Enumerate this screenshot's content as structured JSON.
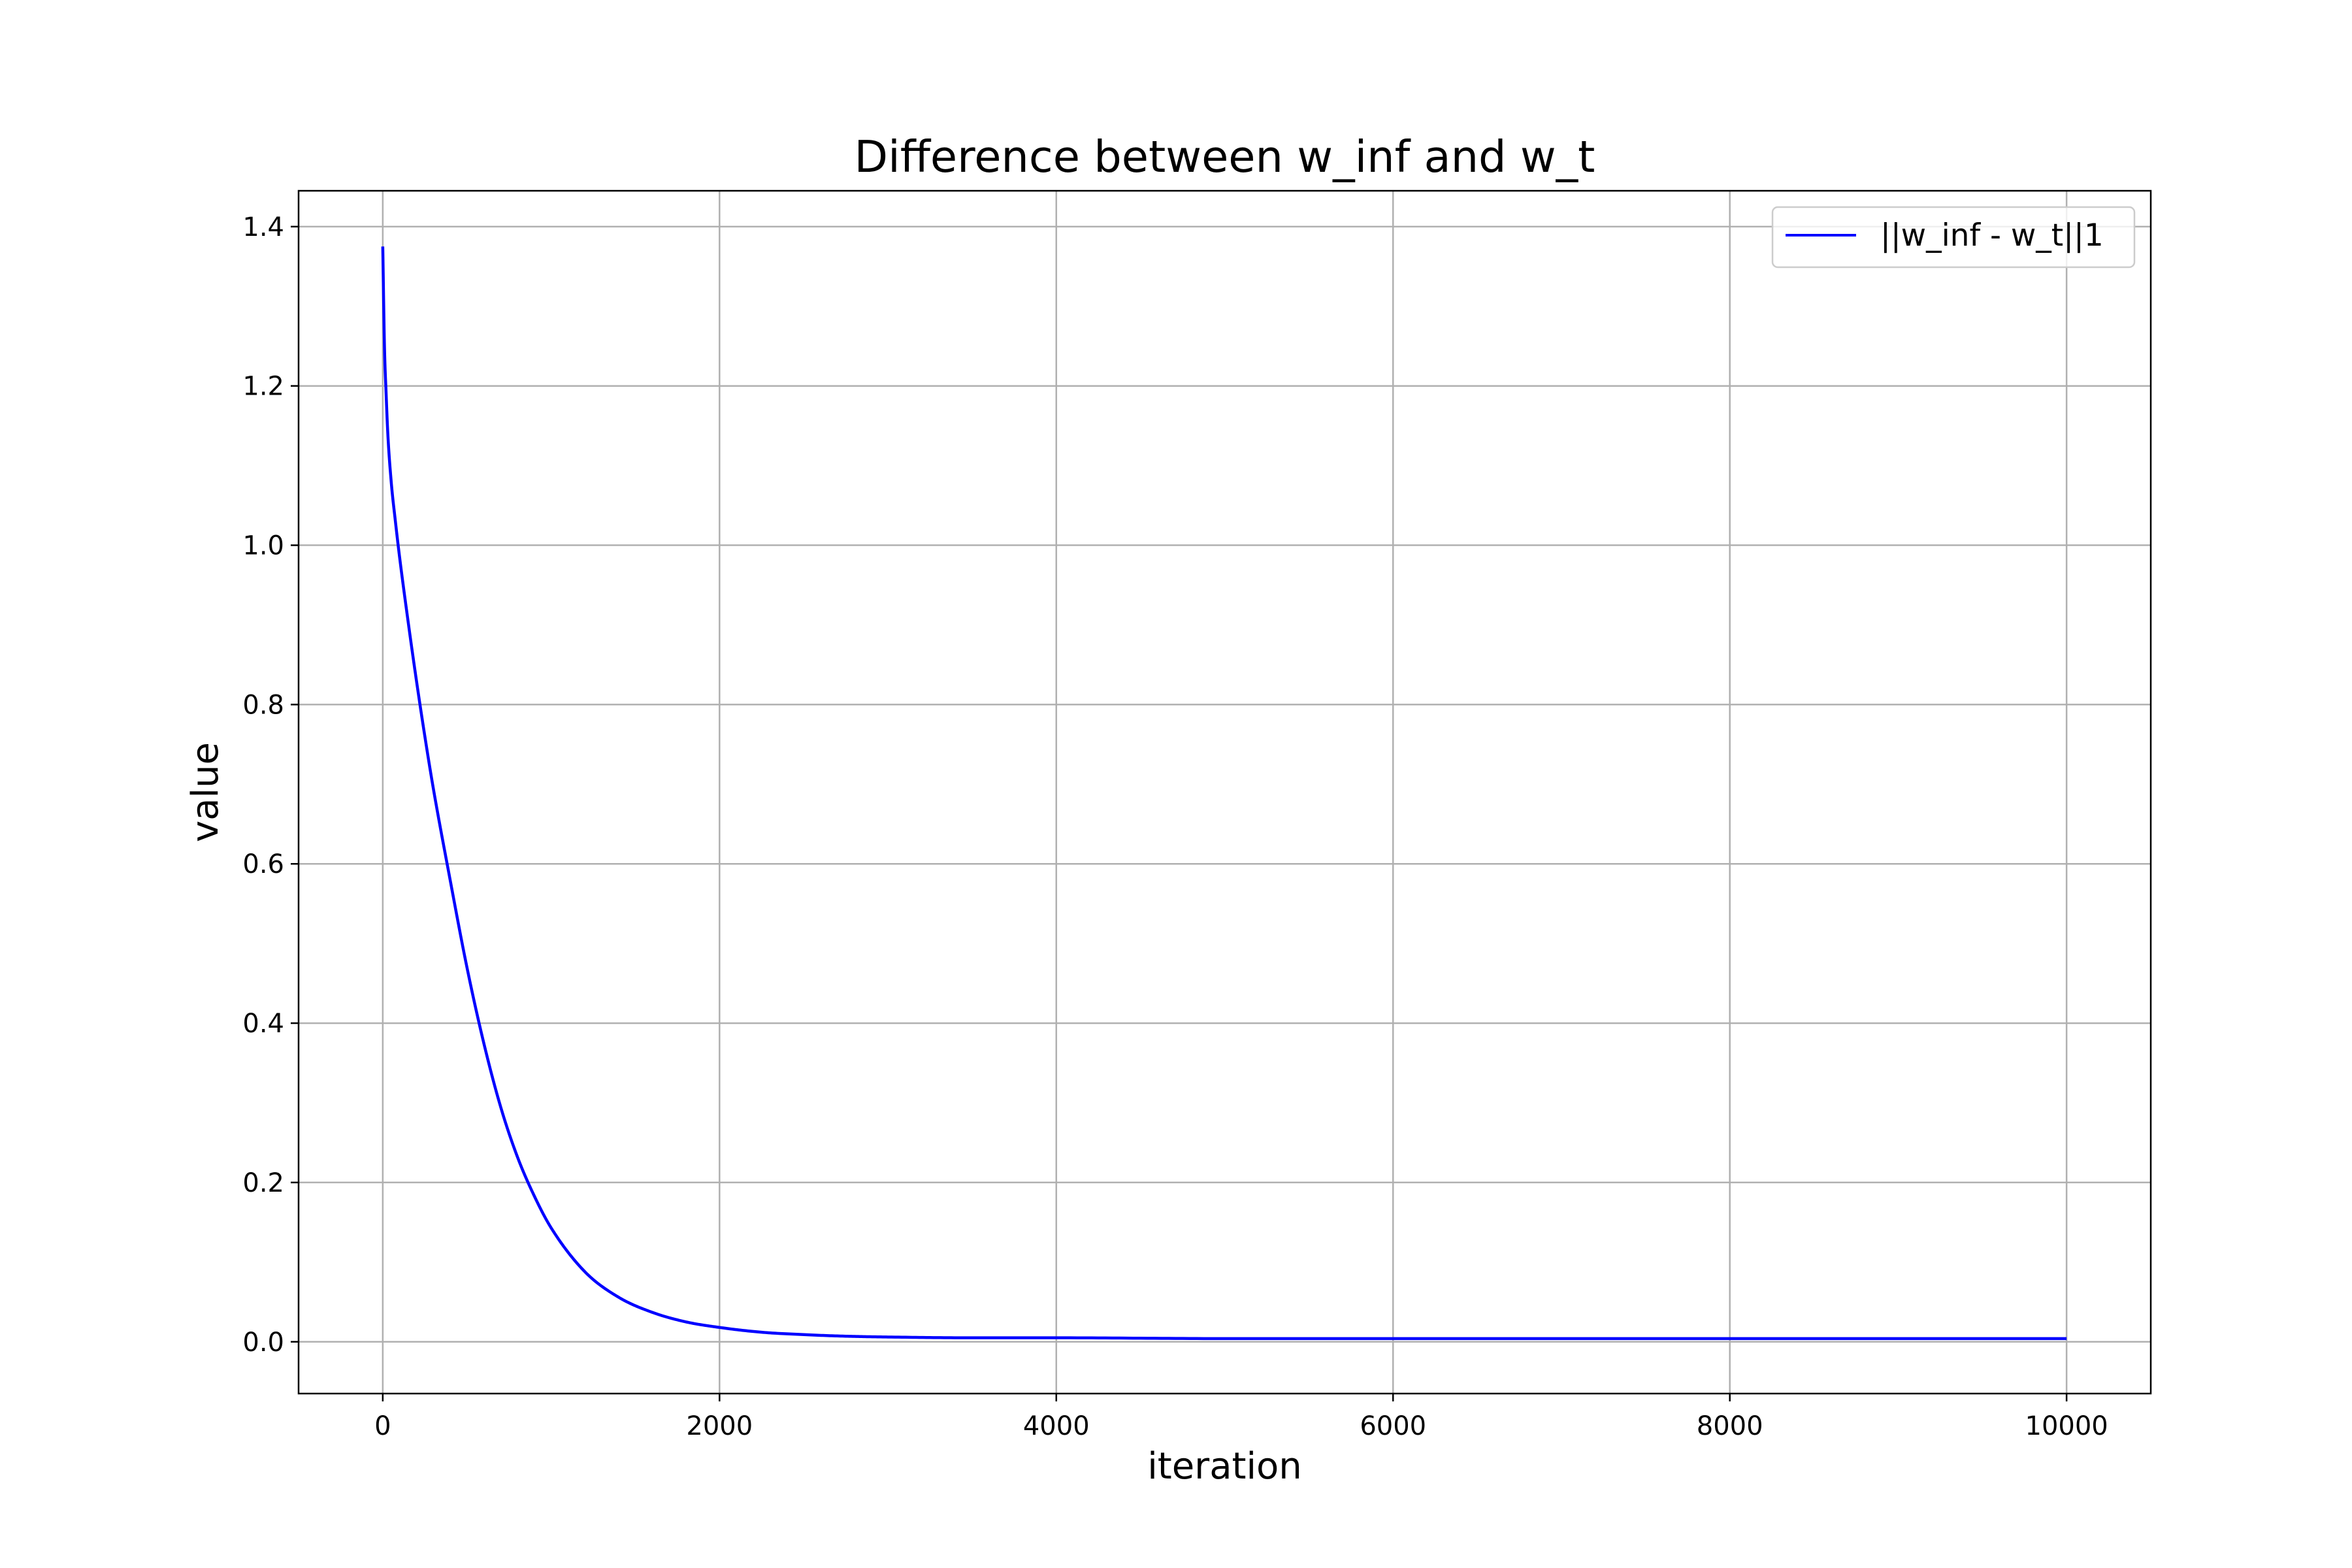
{
  "chart_data": {
    "type": "line",
    "title": "Difference between w_inf and w_t",
    "xlabel": "iteration",
    "ylabel": "value",
    "xlim": [
      -500,
      10500
    ],
    "ylim": [
      -0.065,
      1.445
    ],
    "xticks": [
      0,
      2000,
      4000,
      6000,
      8000,
      10000
    ],
    "xtick_labels": [
      "0",
      "2000",
      "4000",
      "6000",
      "8000",
      "10000"
    ],
    "yticks": [
      0.0,
      0.2,
      0.4,
      0.6,
      0.8,
      1.0,
      1.2,
      1.4
    ],
    "ytick_labels": [
      "0.0",
      "0.2",
      "0.4",
      "0.6",
      "0.8",
      "1.0",
      "1.2",
      "1.4"
    ],
    "grid": true,
    "legend_position": "upper right",
    "series": [
      {
        "name": "||w_inf - w_t||1",
        "color": "#0000ff",
        "x": [
          0,
          10,
          20,
          30,
          50,
          75,
          100,
          150,
          200,
          250,
          300,
          400,
          500,
          600,
          700,
          800,
          900,
          1000,
          1200,
          1400,
          1600,
          1800,
          2000,
          2250,
          2500,
          2750,
          3000,
          3500,
          4000,
          5000,
          6000,
          7000,
          8000,
          9000,
          10000
        ],
        "values": [
          1.375,
          1.25,
          1.19,
          1.14,
          1.08,
          1.03,
          0.985,
          0.905,
          0.83,
          0.76,
          0.695,
          0.58,
          0.47,
          0.375,
          0.295,
          0.232,
          0.183,
          0.143,
          0.088,
          0.056,
          0.037,
          0.025,
          0.018,
          0.012,
          0.009,
          0.007,
          0.006,
          0.005,
          0.005,
          0.004,
          0.004,
          0.004,
          0.004,
          0.004,
          0.004
        ]
      }
    ]
  }
}
